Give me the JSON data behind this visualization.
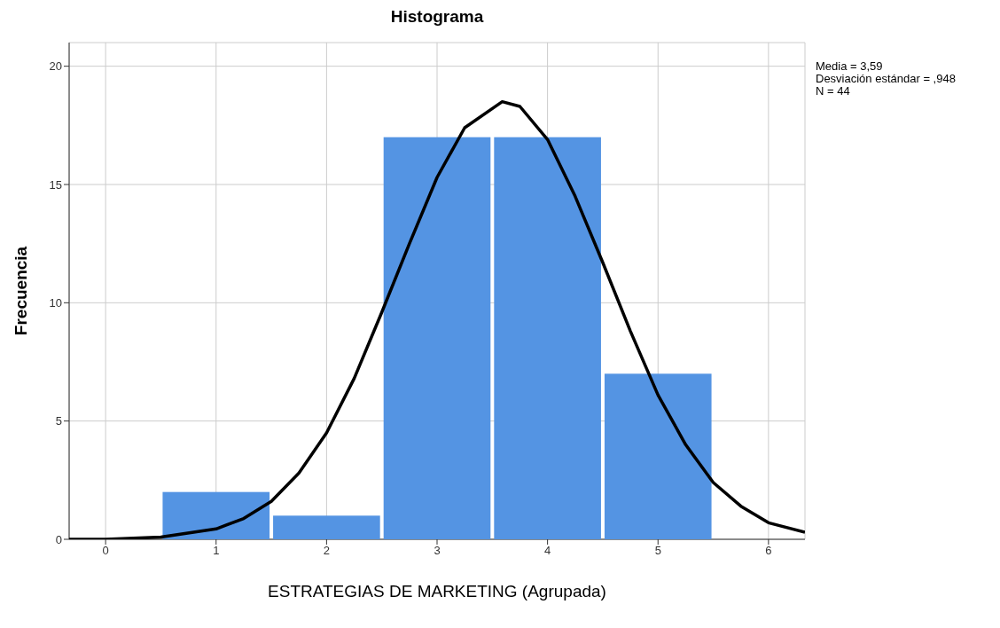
{
  "chart_data": {
    "type": "histogram",
    "title": "Histograma",
    "xlabel": "ESTRATEGIAS DE MARKETING (Agrupada)",
    "ylabel": "Frecuencia",
    "bins": [
      0.5,
      1.5,
      2.5,
      3.5,
      4.5,
      5.5
    ],
    "values": [
      2,
      1,
      17,
      17,
      7
    ],
    "color": "#5494e3",
    "series": [
      {
        "type": "line",
        "color": "#000000",
        "x": [
          -0.33,
          0,
          0.5,
          1,
          1.25,
          1.5,
          1.75,
          2,
          2.25,
          2.5,
          2.75,
          3,
          3.25,
          3.59,
          3.75,
          4,
          4.25,
          4.5,
          4.75,
          5,
          5.25,
          5.5,
          5.75,
          6,
          6.33
        ],
        "values": [
          0,
          0,
          0.09,
          0.44,
          0.88,
          1.6,
          2.8,
          4.5,
          6.8,
          9.6,
          12.5,
          15.3,
          17.4,
          18.5,
          18.3,
          16.9,
          14.5,
          11.7,
          8.8,
          6.1,
          4.0,
          2.4,
          1.4,
          0.7,
          0.3
        ]
      }
    ],
    "xlim": [
      -0.33,
      6.33
    ],
    "xticks": [
      0,
      1,
      2,
      3,
      4,
      5,
      6
    ],
    "ylim": [
      0,
      21
    ],
    "yticks": [
      0,
      5,
      10,
      15,
      20
    ],
    "grid": true,
    "legend": false,
    "annotations": [
      "Media = 3,59",
      "Desviación estándar = ,948",
      "N = 44"
    ]
  }
}
